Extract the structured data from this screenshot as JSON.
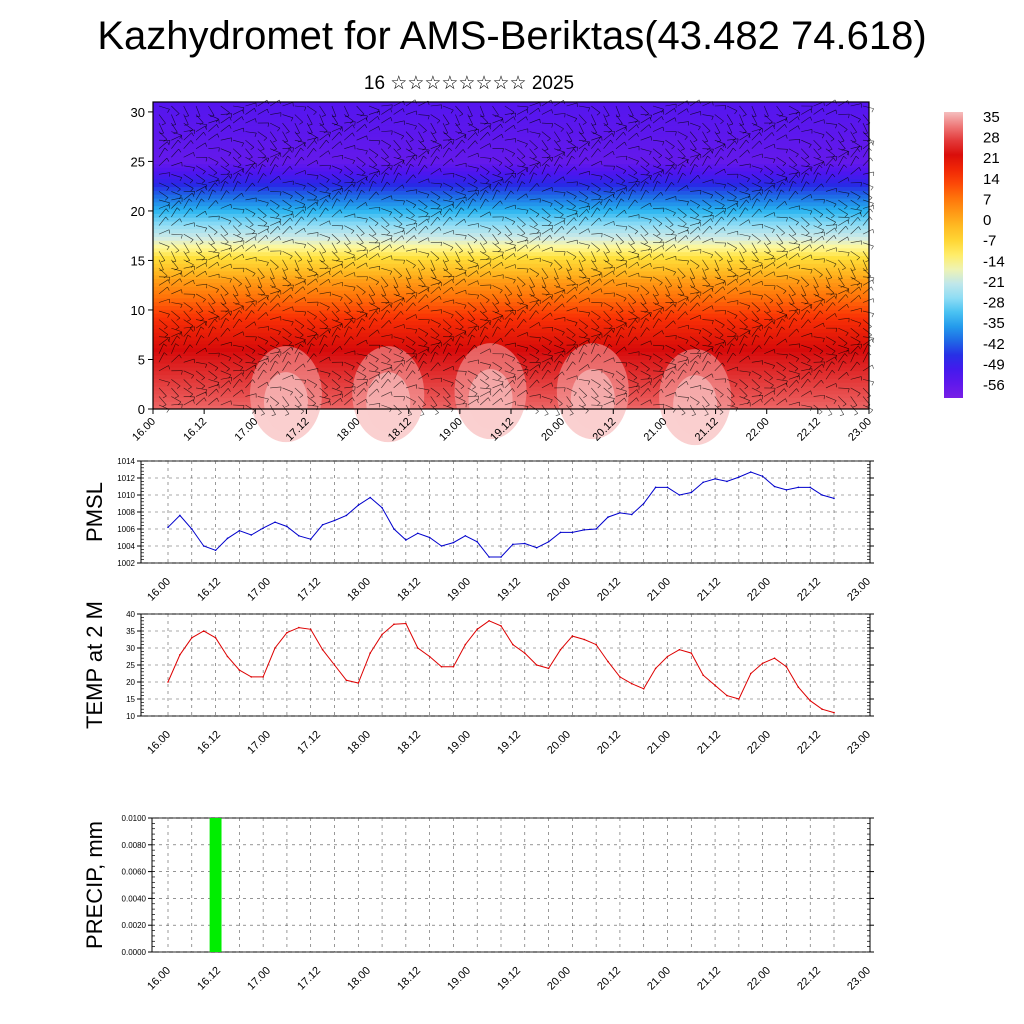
{
  "title": "Kazhydromet for AMS-Beriktas(43.482 74.618)",
  "subtitle": "16 ☆☆☆☆☆☆☆☆ 2025",
  "time_ticks": [
    "16.00",
    "16.12",
    "17.00",
    "17.12",
    "18.00",
    "18.12",
    "19.00",
    "19.12",
    "20.00",
    "20.12",
    "21.00",
    "21.12",
    "22.00",
    "22.12",
    "23.00"
  ],
  "colors": {
    "pmsl_line": "#0000cc",
    "temp_line": "#dd0000",
    "precip_bar": "#00ee00",
    "axis": "#000000"
  },
  "chart_data": [
    {
      "type": "heatmap",
      "y_ticks": [
        "0",
        "5",
        "10",
        "15",
        "20",
        "25",
        "30"
      ],
      "ylim": [
        0,
        31
      ],
      "colorbar_labels": [
        "35",
        "28",
        "21",
        "14",
        "7",
        "0",
        "-7",
        "-14",
        "-21",
        "-28",
        "-35",
        "-42",
        "-49",
        "-56"
      ],
      "colorbar_range": [
        -60,
        38
      ],
      "layers": [
        {
          "y": 0,
          "value": 32
        },
        {
          "y": 3,
          "value": 28
        },
        {
          "y": 6,
          "value": 24
        },
        {
          "y": 9,
          "value": 17
        },
        {
          "y": 11,
          "value": 10
        },
        {
          "y": 13,
          "value": 3
        },
        {
          "y": 15,
          "value": -6
        },
        {
          "y": 16,
          "value": -12
        },
        {
          "y": 17.5,
          "value": -20
        },
        {
          "y": 19.5,
          "value": -30
        },
        {
          "y": 21.5,
          "value": -40
        },
        {
          "y": 23.5,
          "value": -50
        },
        {
          "y": 25,
          "value": -56
        },
        {
          "y": 27,
          "value": -55
        },
        {
          "y": 31,
          "value": -53
        }
      ],
      "warm_cores": [
        {
          "t": 1.3,
          "y": 1.5
        },
        {
          "t": 2.3,
          "y": 1.5
        },
        {
          "t": 3.3,
          "y": 1.8
        },
        {
          "t": 4.3,
          "y": 1.8
        },
        {
          "t": 5.3,
          "y": 1.2
        }
      ]
    },
    {
      "type": "line",
      "ylabel": "PMSL",
      "y_ticks": [
        "1002",
        "1004",
        "1006",
        "1008",
        "1010",
        "1012",
        "1014"
      ],
      "ylim": [
        1002,
        1014
      ],
      "x": [
        0,
        0.125,
        0.25,
        0.375,
        0.5,
        0.625,
        0.75,
        0.875,
        1,
        1.125,
        1.25,
        1.375,
        1.5,
        1.625,
        1.75,
        1.875,
        2,
        2.125,
        2.25,
        2.375,
        2.5,
        2.625,
        2.75,
        2.875,
        3,
        3.125,
        3.25,
        3.375,
        3.5,
        3.625,
        3.75,
        3.875,
        4,
        4.125,
        4.25,
        4.375,
        4.5,
        4.625,
        4.75,
        4.875,
        5,
        5.125,
        5.25,
        5.375,
        5.5,
        5.625,
        5.75,
        5.875,
        6,
        6.125,
        6.25,
        6.375,
        6.5,
        6.625,
        6.75,
        6.875,
        7
      ],
      "values": [
        1006.2,
        1007.6,
        1006.0,
        1004.0,
        1003.5,
        1004.9,
        1005.8,
        1005.3,
        1006.1,
        1006.8,
        1006.3,
        1005.2,
        1004.8,
        1006.5,
        1007.0,
        1007.6,
        1008.8,
        1009.7,
        1008.5,
        1006.0,
        1004.7,
        1005.5,
        1005.0,
        1004.0,
        1004.4,
        1005.2,
        1004.5,
        1002.7,
        1002.7,
        1004.2,
        1004.3,
        1003.8,
        1004.5,
        1005.6,
        1005.6,
        1005.9,
        1006.0,
        1007.4,
        1007.9,
        1007.7,
        1009.0,
        1010.9,
        1010.9,
        1010.0,
        1010.3,
        1011.5,
        1011.9,
        1011.6,
        1012.1,
        1012.7,
        1012.2,
        1011.0,
        1010.6,
        1010.9,
        1010.9,
        1010.0,
        1009.6
      ]
    },
    {
      "type": "line",
      "ylabel": "TEMP at 2 M",
      "y_ticks": [
        "10",
        "15",
        "20",
        "25",
        "30",
        "35",
        "40"
      ],
      "ylim": [
        10,
        40
      ],
      "x": [
        0,
        0.125,
        0.25,
        0.375,
        0.5,
        0.625,
        0.75,
        0.875,
        1,
        1.125,
        1.25,
        1.375,
        1.5,
        1.625,
        1.75,
        1.875,
        2,
        2.125,
        2.25,
        2.375,
        2.5,
        2.625,
        2.75,
        2.875,
        3,
        3.125,
        3.25,
        3.375,
        3.5,
        3.625,
        3.75,
        3.875,
        4,
        4.125,
        4.25,
        4.375,
        4.5,
        4.625,
        4.75,
        4.875,
        5,
        5.125,
        5.25,
        5.375,
        5.5,
        5.625,
        5.75,
        5.875,
        6,
        6.125,
        6.25,
        6.375,
        6.5,
        6.625,
        6.75,
        6.875,
        7
      ],
      "values": [
        20.0,
        28.0,
        33.0,
        35.0,
        33.0,
        27.5,
        23.5,
        21.5,
        21.5,
        30.0,
        34.5,
        36.0,
        35.5,
        29.5,
        25.0,
        20.5,
        19.7,
        28.5,
        34.0,
        37.0,
        37.2,
        30.0,
        27.5,
        24.5,
        24.5,
        31.0,
        35.5,
        38.0,
        36.5,
        31.0,
        28.5,
        25.0,
        24.0,
        29.5,
        33.5,
        32.5,
        31.0,
        26.0,
        21.5,
        19.5,
        18.0,
        24.0,
        27.5,
        29.5,
        28.5,
        22.0,
        19.0,
        16.0,
        15.0,
        22.5,
        25.5,
        27.0,
        24.5,
        18.5,
        14.5,
        12.0,
        11.0
      ]
    },
    {
      "type": "bar",
      "ylabel": "PRECIP, mm",
      "y_ticks": [
        "0.0000",
        "0.0020",
        "0.0040",
        "0.0060",
        "0.0080",
        "0.0100"
      ],
      "ylim": [
        0,
        0.01
      ],
      "bars": [
        {
          "x": 0.5,
          "width": 0.125,
          "value": 0.01
        }
      ]
    }
  ]
}
